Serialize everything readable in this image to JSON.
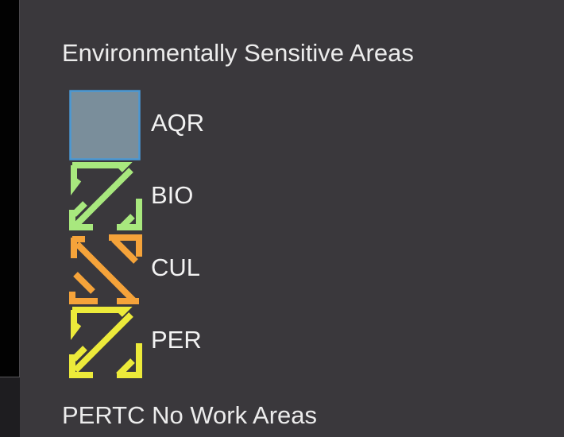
{
  "legend": {
    "sections": [
      {
        "title": "Environmentally Sensitive Areas",
        "items": [
          {
            "label": "AQR",
            "symbol": "solid-fill",
            "fill_color": "#7a8e9b",
            "outline_color": "#4a98d4"
          },
          {
            "label": "BIO",
            "symbol": "hatch",
            "color": "#a8e87e"
          },
          {
            "label": "CUL",
            "symbol": "hatch-reverse",
            "color": "#f5a33a"
          },
          {
            "label": "PER",
            "symbol": "hatch",
            "color": "#ecea3a"
          }
        ]
      },
      {
        "title": "PERTC No Work Areas",
        "items": []
      }
    ]
  }
}
